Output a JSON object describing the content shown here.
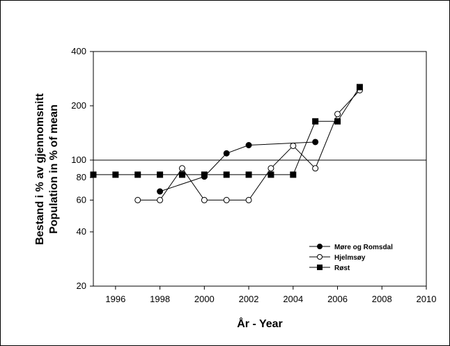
{
  "chart_data": {
    "type": "line",
    "title": "",
    "xlabel": "År  -  Year",
    "ylabel_line1": "Bestand i % av gjennomsnitt",
    "ylabel_line2": "Population in % of mean",
    "y_scale": "log",
    "xlim": [
      1995,
      2010
    ],
    "ylim": [
      20,
      400
    ],
    "x_ticks": [
      1996,
      1998,
      2000,
      2002,
      2004,
      2006,
      2008,
      2010
    ],
    "y_ticks": [
      20,
      40,
      60,
      80,
      100,
      200,
      400
    ],
    "reference_line": 100,
    "grid": false,
    "legend_position": "bottom-right",
    "series": [
      {
        "name": "Møre og Romsdal",
        "marker": "filled-circle",
        "color": "#000000",
        "points": [
          [
            1998,
            67
          ],
          [
            2000,
            81
          ],
          [
            2001,
            109
          ],
          [
            2002,
            121
          ],
          [
            2005,
            126
          ]
        ]
      },
      {
        "name": "Hjelmsøy",
        "marker": "open-circle",
        "color": "#000000",
        "points": [
          [
            1997,
            60
          ],
          [
            1998,
            60
          ],
          [
            1999,
            90
          ],
          [
            2000,
            60
          ],
          [
            2001,
            60
          ],
          [
            2002,
            60
          ],
          [
            2003,
            90
          ],
          [
            2004,
            120
          ],
          [
            2005,
            90
          ],
          [
            2006,
            180
          ],
          [
            2007,
            244
          ]
        ]
      },
      {
        "name": "Røst",
        "marker": "filled-square",
        "color": "#000000",
        "points": [
          [
            1995,
            83
          ],
          [
            1996,
            83
          ],
          [
            1997,
            83
          ],
          [
            1998,
            83
          ],
          [
            1999,
            83
          ],
          [
            2000,
            83
          ],
          [
            2001,
            83
          ],
          [
            2002,
            83
          ],
          [
            2003,
            83
          ],
          [
            2004,
            83
          ],
          [
            2005,
            164
          ],
          [
            2006,
            164
          ],
          [
            2007,
            254
          ]
        ]
      }
    ]
  }
}
